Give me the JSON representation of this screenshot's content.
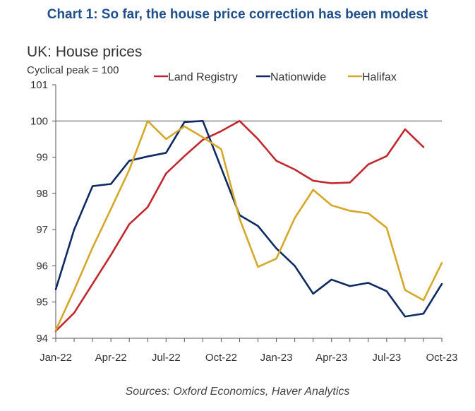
{
  "header": {
    "title": "Chart 1: So far, the house price correction has been modest"
  },
  "footer": {
    "source": "Sources: Oxford Economics, Haver Analytics"
  },
  "chart_data": {
    "type": "line",
    "subtitle": "UK: House prices",
    "ylabel": "Cyclical peak = 100",
    "ylim": [
      94,
      101
    ],
    "yticks": [
      94,
      95,
      96,
      97,
      98,
      99,
      100,
      101
    ],
    "reference_line": 100,
    "x": [
      "Jan-22",
      "Feb-22",
      "Mar-22",
      "Apr-22",
      "May-22",
      "Jun-22",
      "Jul-22",
      "Aug-22",
      "Sep-22",
      "Oct-22",
      "Nov-22",
      "Dec-22",
      "Jan-23",
      "Feb-23",
      "Mar-23",
      "Apr-23",
      "May-23",
      "Jun-23",
      "Jul-23",
      "Aug-23",
      "Sep-23",
      "Oct-23"
    ],
    "xticks": [
      "Jan-22",
      "Apr-22",
      "Jul-22",
      "Oct-22",
      "Jan-23",
      "Apr-23",
      "Jul-23",
      "Oct-23"
    ],
    "legend_position": "top-right",
    "series": [
      {
        "name": "Land Registry",
        "color": "#c0282e",
        "values": [
          94.2,
          94.7,
          95.5,
          96.3,
          97.15,
          97.62,
          98.55,
          99.03,
          99.48,
          99.72,
          100.0,
          99.5,
          98.9,
          98.66,
          98.35,
          98.28,
          98.3,
          98.8,
          99.03,
          99.77,
          99.28,
          null
        ]
      },
      {
        "name": "Nationwide",
        "color": "#0d2a63",
        "values": [
          95.35,
          97.0,
          98.2,
          98.26,
          98.9,
          99.02,
          99.12,
          99.97,
          100.0,
          98.7,
          97.4,
          97.1,
          96.48,
          96.0,
          95.23,
          95.62,
          95.44,
          95.53,
          95.3,
          94.6,
          94.68,
          95.5
        ]
      },
      {
        "name": "Halifax",
        "color": "#d4a829",
        "values": [
          94.22,
          95.33,
          96.5,
          97.57,
          98.65,
          100.0,
          99.5,
          99.85,
          99.55,
          99.22,
          97.3,
          95.97,
          96.2,
          97.32,
          98.1,
          97.67,
          97.52,
          97.45,
          97.05,
          95.33,
          95.05,
          96.08
        ]
      }
    ]
  }
}
